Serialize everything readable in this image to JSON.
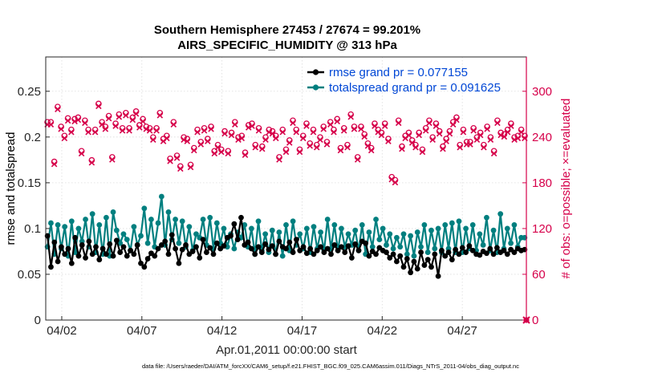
{
  "chart_data": {
    "type": "line",
    "title": "Southern Hemisphere 27453 / 27674 = 99.201%",
    "subtitle": "AIRS_SPECIFIC_HUMIDITY @ 313 hPa",
    "xlabel": "Apr.01,2011 00:00:00 start",
    "ylabel_left": "rmse and totalspread",
    "ylabel_right": "# of obs: o=possible; ×=evaluated",
    "footnote": "data file: /Users/raeder/DAI/ATM_forcXX/CAM6_setup/f.e21.FHIST_BGC.f09_025.CAM6assim.011/Diags_NTrS_2011-04/obs_diag_output.nc",
    "x_ticks": [
      {
        "day": 2,
        "label": "04/02"
      },
      {
        "day": 7,
        "label": "04/07"
      },
      {
        "day": 12,
        "label": "04/12"
      },
      {
        "day": 17,
        "label": "04/17"
      },
      {
        "day": 22,
        "label": "04/22"
      },
      {
        "day": 27,
        "label": "04/27"
      }
    ],
    "xlim": [
      1,
      31
    ],
    "ylim_left": [
      0,
      0.2875
    ],
    "ylim_right": [
      0,
      345
    ],
    "y_ticks_left": [
      "0",
      "0.05",
      "0.1",
      "0.15",
      "0.2",
      "0.25"
    ],
    "y_tick_values_left": [
      0,
      0.05,
      0.1,
      0.15,
      0.2,
      0.25
    ],
    "y_ticks_right": [
      "0",
      "60",
      "120",
      "180",
      "240",
      "300"
    ],
    "y_tick_values_right": [
      0,
      60,
      120,
      180,
      240,
      300
    ],
    "grid": true,
    "series": [
      {
        "name": "rmse grand pr = 0.077155",
        "color": "#000000",
        "marker": "filled-circle",
        "axis": "left",
        "values": [
          0.092,
          0.058,
          0.085,
          0.064,
          0.08,
          0.072,
          0.078,
          0.062,
          0.09,
          0.07,
          0.082,
          0.068,
          0.086,
          0.072,
          0.08,
          0.066,
          0.078,
          0.072,
          0.083,
          0.07,
          0.087,
          0.074,
          0.08,
          0.07,
          0.076,
          0.072,
          0.082,
          0.062,
          0.058,
          0.067,
          0.073,
          0.07,
          0.078,
          0.082,
          0.086,
          0.072,
          0.093,
          0.078,
          0.062,
          0.077,
          0.082,
          0.072,
          0.075,
          0.08,
          0.068,
          0.088,
          0.074,
          0.079,
          0.072,
          0.084,
          0.078,
          0.081,
          0.09,
          0.092,
          0.105,
          0.088,
          0.112,
          0.082,
          0.085,
          0.078,
          0.072,
          0.08,
          0.074,
          0.083,
          0.077,
          0.081,
          0.072,
          0.086,
          0.08,
          0.078,
          0.085,
          0.074,
          0.088,
          0.076,
          0.08,
          0.073,
          0.078,
          0.072,
          0.076,
          0.08,
          0.074,
          0.078,
          0.072,
          0.082,
          0.076,
          0.08,
          0.074,
          0.081,
          0.068,
          0.083,
          0.076,
          0.086,
          0.084,
          0.07,
          0.075,
          0.072,
          0.079,
          0.076,
          0.074,
          0.068,
          0.072,
          0.064,
          0.07,
          0.058,
          0.067,
          0.052,
          0.064,
          0.056,
          0.074,
          0.06,
          0.066,
          0.058,
          0.072,
          0.048,
          0.076,
          0.07,
          0.074,
          0.066,
          0.077,
          0.072,
          0.079,
          0.074,
          0.081,
          0.076,
          0.072,
          0.071,
          0.075,
          0.073,
          0.078,
          0.072,
          0.079,
          0.074,
          0.076,
          0.072,
          0.077,
          0.074,
          0.078,
          0.076,
          0.077
        ]
      },
      {
        "name": "totalspread grand pr = 0.091625",
        "color": "#007f7f",
        "marker": "filled-circle",
        "axis": "left",
        "values": [
          0.08,
          0.106,
          0.072,
          0.104,
          0.078,
          0.102,
          0.07,
          0.108,
          0.074,
          0.1,
          0.086,
          0.11,
          0.08,
          0.116,
          0.074,
          0.104,
          0.072,
          0.112,
          0.07,
          0.118,
          0.098,
          0.084,
          0.094,
          0.088,
          0.076,
          0.102,
          0.082,
          0.092,
          0.122,
          0.084,
          0.11,
          0.08,
          0.106,
          0.135,
          0.082,
          0.118,
          0.088,
          0.11,
          0.084,
          0.108,
          0.08,
          0.102,
          0.076,
          0.094,
          0.09,
          0.11,
          0.082,
          0.112,
          0.078,
          0.106,
          0.084,
          0.1,
          0.08,
          0.094,
          0.078,
          0.096,
          0.09,
          0.104,
          0.08,
          0.1,
          0.072,
          0.108,
          0.076,
          0.094,
          0.074,
          0.098,
          0.072,
          0.096,
          0.07,
          0.104,
          0.076,
          0.108,
          0.082,
          0.094,
          0.078,
          0.1,
          0.074,
          0.102,
          0.078,
          0.096,
          0.076,
          0.11,
          0.078,
          0.104,
          0.076,
          0.1,
          0.08,
          0.094,
          0.082,
          0.098,
          0.076,
          0.104,
          0.072,
          0.096,
          0.08,
          0.11,
          0.088,
          0.1,
          0.082,
          0.094,
          0.078,
          0.09,
          0.08,
          0.094,
          0.072,
          0.092,
          0.07,
          0.096,
          0.08,
          0.104,
          0.074,
          0.098,
          0.078,
          0.1,
          0.074,
          0.104,
          0.078,
          0.106,
          0.074,
          0.108,
          0.074,
          0.1,
          0.078,
          0.104,
          0.076,
          0.094,
          0.082,
          0.112,
          0.076,
          0.098,
          0.074,
          0.116,
          0.078,
          0.1,
          0.084,
          0.104,
          0.08,
          0.09,
          0.09
        ]
      },
      {
        "name": "obs possible",
        "color": "#d6004a",
        "marker": "open-circle",
        "axis": "right",
        "values": [
          258,
          258,
          206,
          278,
          252,
          240,
          263,
          248,
          262,
          264,
          220,
          260,
          248,
          208,
          248,
          282,
          258,
          252,
          266,
          212,
          256,
          268,
          250,
          270,
          250,
          264,
          272,
          254,
          262,
          252,
          250,
          238,
          250,
          270,
          236,
          240,
          210,
          258,
          214,
          200,
          238,
          236,
          202,
          224,
          248,
          232,
          250,
          236,
          252,
          220,
          228,
          222,
          246,
          220,
          244,
          258,
          238,
          240,
          218,
          254,
          256,
          228,
          250,
          226,
          238,
          248,
          246,
          240,
          212,
          248,
          222,
          234,
          260,
          248,
          222,
          240,
          256,
          230,
          248,
          228,
          238,
          252,
          232,
          258,
          248,
          262,
          224,
          250,
          228,
          268,
          252,
          212,
          252,
          242,
          230,
          224,
          256,
          248,
          244,
          256,
          236,
          186,
          182,
          260,
          226,
          240,
          244,
          234,
          228,
          244,
          222,
          250,
          260,
          238,
          256,
          246,
          226,
          236,
          246,
          258,
          264,
          228,
          248,
          232,
          232,
          250,
          238,
          244,
          228,
          252,
          238,
          220,
          260,
          244,
          242,
          248,
          256,
          238,
          240,
          248,
          240
        ]
      },
      {
        "name": "obs evaluated",
        "color": "#d6004a",
        "marker": "cross",
        "axis": "right",
        "values": [
          258,
          258,
          206,
          278,
          252,
          240,
          263,
          248,
          262,
          264,
          220,
          260,
          248,
          208,
          248,
          282,
          258,
          252,
          266,
          212,
          256,
          268,
          250,
          270,
          250,
          264,
          272,
          254,
          262,
          252,
          250,
          238,
          250,
          270,
          236,
          240,
          210,
          258,
          214,
          200,
          238,
          236,
          202,
          224,
          248,
          232,
          250,
          236,
          252,
          220,
          228,
          222,
          246,
          220,
          244,
          258,
          238,
          240,
          218,
          254,
          256,
          228,
          250,
          226,
          238,
          248,
          246,
          240,
          212,
          248,
          222,
          234,
          260,
          248,
          222,
          240,
          256,
          230,
          248,
          228,
          238,
          252,
          232,
          258,
          248,
          262,
          224,
          250,
          228,
          268,
          252,
          212,
          252,
          242,
          230,
          224,
          256,
          248,
          244,
          256,
          236,
          186,
          182,
          260,
          226,
          240,
          244,
          234,
          228,
          244,
          222,
          250,
          260,
          238,
          256,
          246,
          226,
          236,
          246,
          258,
          264,
          228,
          248,
          232,
          232,
          250,
          238,
          244,
          228,
          252,
          238,
          220,
          260,
          244,
          242,
          248,
          256,
          238,
          240,
          248,
          240
        ]
      }
    ]
  }
}
